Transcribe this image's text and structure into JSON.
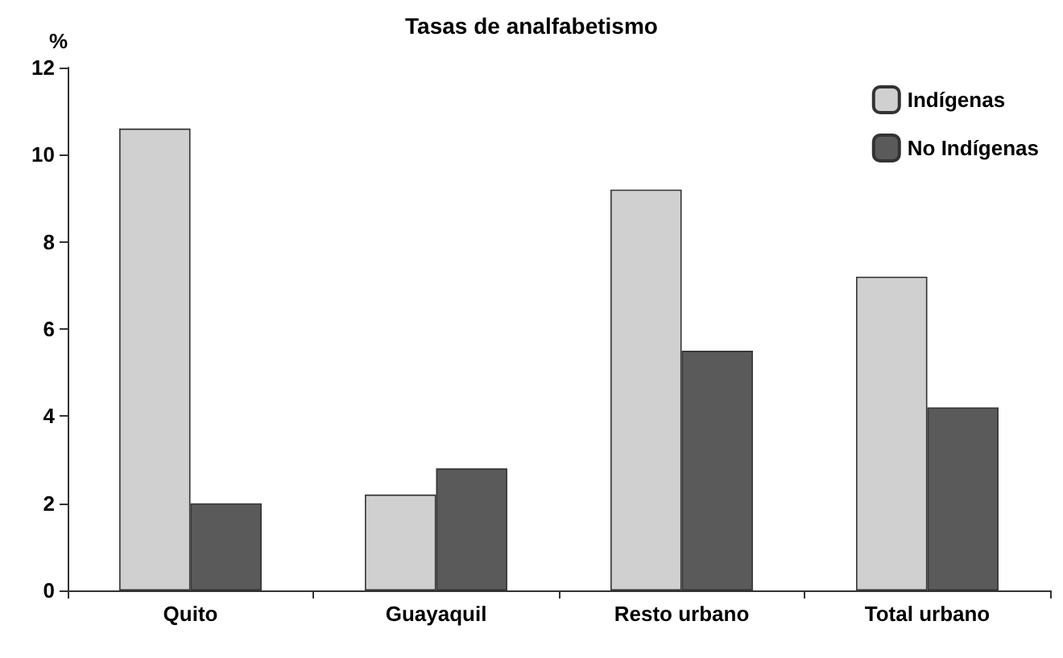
{
  "chart_data": {
    "type": "bar",
    "title": "Tasas de analfabetismo",
    "ylabel": "%",
    "categories": [
      "Quito",
      "Guayaquil",
      "Resto urbano",
      "Total urbano"
    ],
    "series": [
      {
        "name": "Indígenas",
        "color": "#d0d0d0",
        "values": [
          10.6,
          2.2,
          9.2,
          7.2
        ]
      },
      {
        "name": "No Indígenas",
        "color": "#5a5a5a",
        "values": [
          2.0,
          2.8,
          5.5,
          4.2
        ]
      }
    ],
    "ylim": [
      0,
      12
    ],
    "yticks": [
      0,
      2,
      4,
      6,
      8,
      10,
      12
    ],
    "grid": false,
    "legend": "top right"
  }
}
